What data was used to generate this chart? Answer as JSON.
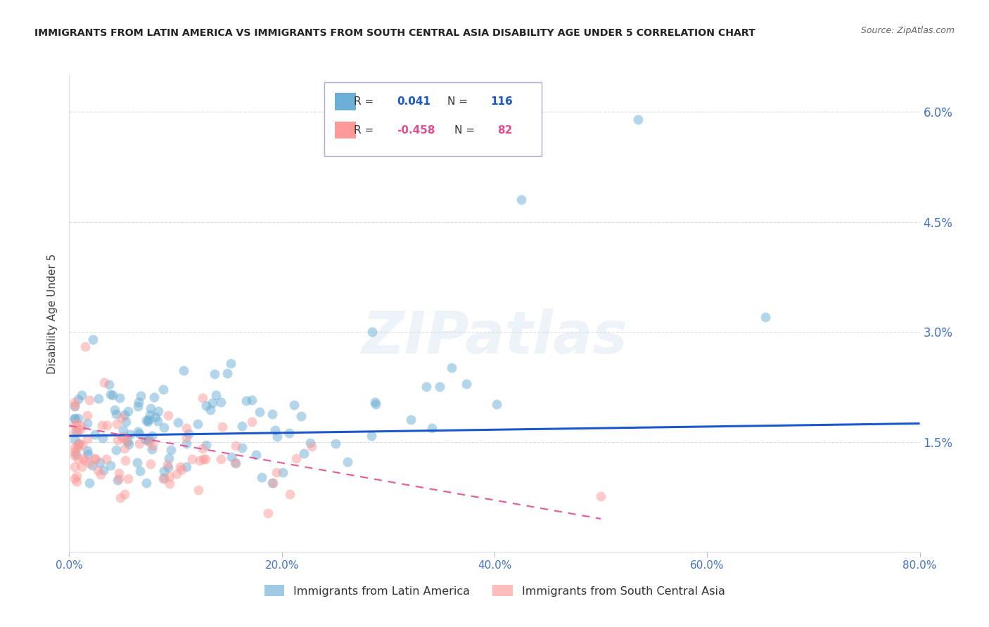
{
  "title": "IMMIGRANTS FROM LATIN AMERICA VS IMMIGRANTS FROM SOUTH CENTRAL ASIA DISABILITY AGE UNDER 5 CORRELATION CHART",
  "source": "Source: ZipAtlas.com",
  "xlabel_ticks": [
    "0.0%",
    "20.0%",
    "40.0%",
    "60.0%",
    "80.0%"
  ],
  "xlabel_tick_vals": [
    0.0,
    0.2,
    0.4,
    0.6,
    0.8
  ],
  "ylabel_right_ticks": [
    "1.5%",
    "3.0%",
    "4.5%",
    "6.0%"
  ],
  "ylabel_right_tick_vals": [
    0.015,
    0.03,
    0.045,
    0.06
  ],
  "xmin": 0.0,
  "xmax": 0.8,
  "ymin": 0.0,
  "ymax": 0.065,
  "legend_label1": "Immigrants from Latin America",
  "legend_label2": "Immigrants from South Central Asia",
  "R1": 0.041,
  "N1": 116,
  "R2": -0.458,
  "N2": 82,
  "color1": "#6baed6",
  "color2": "#fb9a99",
  "trendline1_color": "#1a56cc",
  "trendline2_color": "#e05090",
  "watermark": "ZIPatlas",
  "trendline1_x0": 0.0,
  "trendline1_x1": 0.8,
  "trendline1_y0": 0.0158,
  "trendline1_y1": 0.0175,
  "trendline2_x0": 0.0,
  "trendline2_x1": 0.5,
  "trendline2_y0": 0.0172,
  "trendline2_y1": 0.0045,
  "background_color": "#ffffff",
  "grid_color": "#cccccc",
  "title_color": "#222222",
  "axis_label_color": "#4472c4",
  "tick_color": "#4472c4",
  "ylabel_label": "Disability Age Under 5"
}
